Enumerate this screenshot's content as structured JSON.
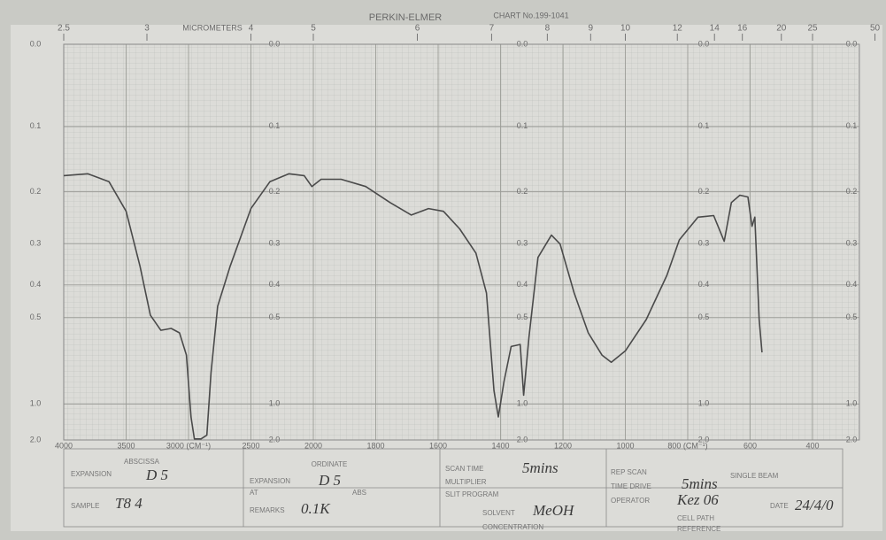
{
  "chart_data": {
    "type": "line",
    "title": "PERKIN-ELMER",
    "subtitle": "CHART No.199-1041",
    "x2label": "MICROMETERS",
    "x": [
      4000,
      3808,
      3637,
      3500,
      3389,
      3306,
      3222,
      3139,
      3072,
      3017,
      2980,
      2953,
      2900,
      2853,
      2820,
      2767,
      2667,
      2500,
      2348,
      2195,
      2073,
      2012,
      1975,
      1911,
      1832,
      1754,
      1686,
      1631,
      1583,
      1531,
      1479,
      1445,
      1421,
      1407,
      1389,
      1366,
      1337,
      1326,
      1309,
      1280,
      1237,
      1209,
      1164,
      1119,
      1075,
      1045,
      1000,
      933,
      867,
      827,
      767,
      717,
      683,
      660,
      633,
      607,
      594,
      585,
      571,
      562
    ],
    "values": [
      0.173,
      0.17,
      0.183,
      0.235,
      0.352,
      0.492,
      0.546,
      0.539,
      0.556,
      0.653,
      1.17,
      1.9,
      1.9,
      1.66,
      0.75,
      0.463,
      0.352,
      0.23,
      0.183,
      0.17,
      0.173,
      0.191,
      0.179,
      0.179,
      0.191,
      0.219,
      0.242,
      0.23,
      0.235,
      0.269,
      0.321,
      0.423,
      0.876,
      1.17,
      0.807,
      0.613,
      0.604,
      0.914,
      0.574,
      0.331,
      0.282,
      0.301,
      0.423,
      0.556,
      0.653,
      0.69,
      0.633,
      0.507,
      0.375,
      0.292,
      0.246,
      0.243,
      0.295,
      0.219,
      0.206,
      0.209,
      0.264,
      0.246,
      0.507,
      0.64
    ],
    "color": "#4a4a4a",
    "xlim": [
      4000,
      250
    ],
    "xticks": [
      4000,
      3500,
      {
        "value": 3000,
        "label": "3000 (CM⁻¹)"
      },
      2500,
      2000,
      1800,
      1600,
      1400,
      1200,
      1000,
      {
        "value": 800,
        "label": "800 (CM⁻¹)"
      },
      600,
      400
    ],
    "x2ticks": [
      2.5,
      3,
      4,
      5,
      6,
      7,
      8,
      9,
      10,
      12,
      14,
      16,
      20,
      25,
      50
    ],
    "ylim": [
      0,
      2
    ],
    "yticks": [
      {
        "value": 0,
        "label": "0.0"
      },
      0.1,
      0.2,
      0.3,
      0.4,
      0.5,
      {
        "value": 1,
        "label": "1.0"
      },
      {
        "value": 2,
        "label": "2.0"
      }
    ],
    "grid": true
  },
  "form": {
    "abscissa": "ABSCISSA",
    "abscissa_expansion_label": "EXPANSION",
    "abscissa_expansion": "D 5",
    "ordinate": "ORDINATE",
    "ordinate_expansion_label": "EXPANSION",
    "ordinate_expansion": "D 5",
    "at": "AT",
    "abs": "ABS",
    "scan_time_label": "SCAN TIME",
    "scan_time": "5mins",
    "multiplier": "MULTIPLIER",
    "slit_program": "SLIT PROGRAM",
    "rep_scan": "REP SCAN",
    "single_beam": "SINGLE BEAM",
    "time_drive_label": "TIME DRIVE",
    "time_drive": "5mins",
    "operator_label": "OPERATOR",
    "operator": "Kez 06",
    "date_label": "DATE",
    "date": "24/4/0",
    "sample_label": "SAMPLE",
    "sample": "T8 4",
    "remarks_label": "REMARKS",
    "remarks": "0.1K",
    "solvent_label": "SOLVENT",
    "solvent": "MeOH",
    "concentration": "CONCENTRATION",
    "cell_path": "CELL PATH",
    "reference": "REFERENCE"
  }
}
